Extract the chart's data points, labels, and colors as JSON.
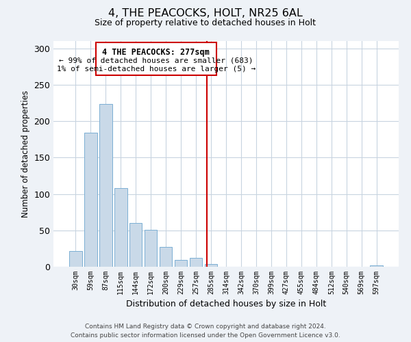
{
  "title": "4, THE PEACOCKS, HOLT, NR25 6AL",
  "subtitle": "Size of property relative to detached houses in Holt",
  "xlabel": "Distribution of detached houses by size in Holt",
  "ylabel": "Number of detached properties",
  "bar_labels": [
    "30sqm",
    "59sqm",
    "87sqm",
    "115sqm",
    "144sqm",
    "172sqm",
    "200sqm",
    "229sqm",
    "257sqm",
    "285sqm",
    "314sqm",
    "342sqm",
    "370sqm",
    "399sqm",
    "427sqm",
    "455sqm",
    "484sqm",
    "512sqm",
    "540sqm",
    "569sqm",
    "597sqm"
  ],
  "bar_values": [
    22,
    184,
    224,
    108,
    60,
    51,
    27,
    9,
    12,
    4,
    0,
    0,
    0,
    0,
    0,
    0,
    0,
    0,
    0,
    0,
    2
  ],
  "bar_color": "#c9d9e8",
  "bar_edge_color": "#7bafd4",
  "ylim": [
    0,
    310
  ],
  "yticks": [
    0,
    50,
    100,
    150,
    200,
    250,
    300
  ],
  "vline_x": 8.72,
  "vline_color": "#cc0000",
  "annotation_title": "4 THE PEACOCKS: 277sqm",
  "annotation_line1": "← 99% of detached houses are smaller (683)",
  "annotation_line2": "1% of semi-detached houses are larger (5) →",
  "annotation_box_color": "#cc0000",
  "footer_line1": "Contains HM Land Registry data © Crown copyright and database right 2024.",
  "footer_line2": "Contains public sector information licensed under the Open Government Licence v3.0.",
  "bg_color": "#eef2f7",
  "plot_bg_color": "#ffffff",
  "grid_color": "#c8d4e0"
}
